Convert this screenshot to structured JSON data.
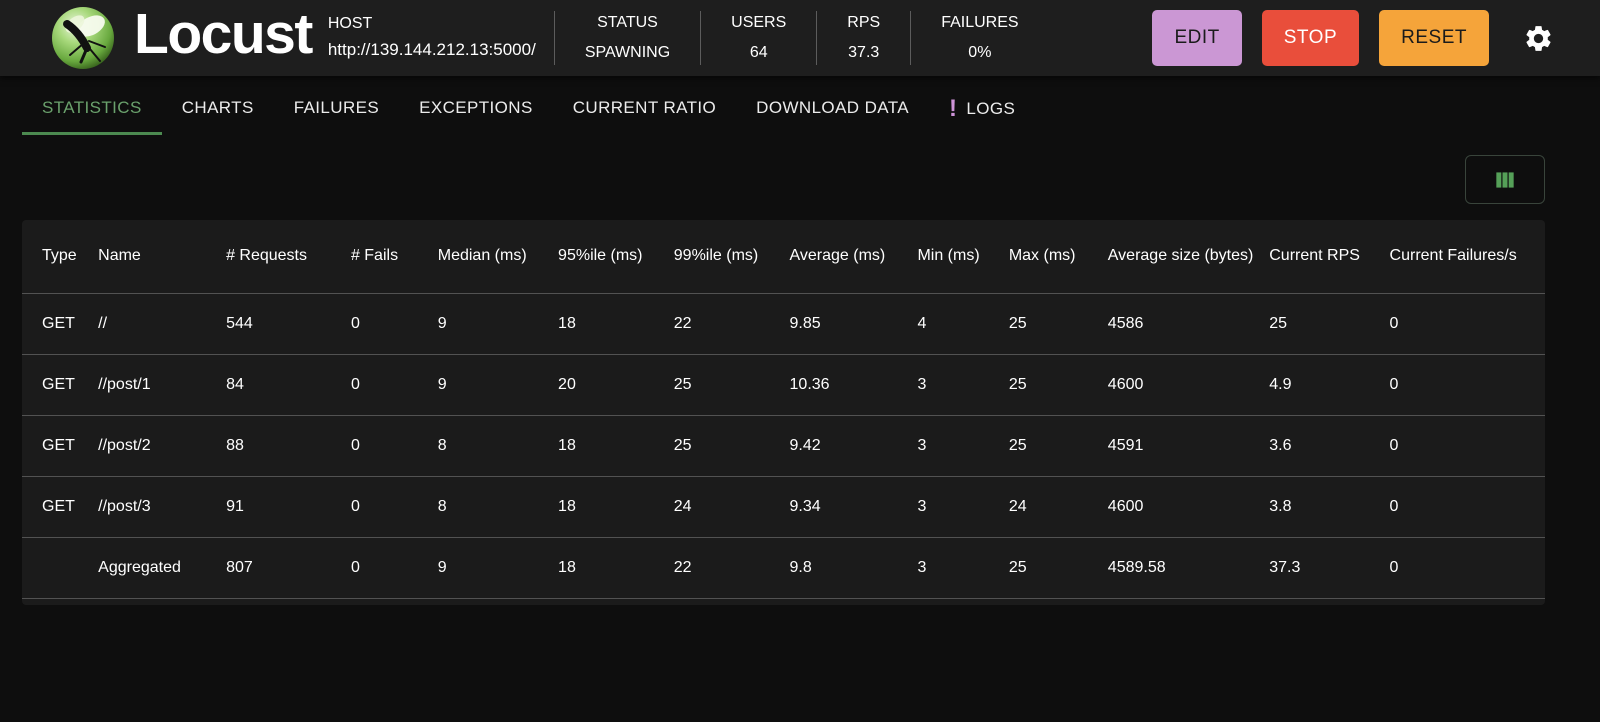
{
  "header": {
    "app_name": "Locust",
    "host_label": "HOST",
    "host_url": "http://139.144.212.13:5000/",
    "stats": [
      {
        "id": "status",
        "label": "STATUS",
        "value": "SPAWNING"
      },
      {
        "id": "users",
        "label": "USERS",
        "value": "64"
      },
      {
        "id": "rps",
        "label": "RPS",
        "value": "37.3"
      },
      {
        "id": "failures",
        "label": "FAILURES",
        "value": "0%"
      }
    ],
    "buttons": [
      {
        "id": "edit",
        "label": "EDIT",
        "bg": "#cb97d4",
        "fg": "#1b1b1b"
      },
      {
        "id": "stop",
        "label": "STOP",
        "bg": "#e94e3b",
        "fg": "#ffffff"
      },
      {
        "id": "reset",
        "label": "RESET",
        "bg": "#f5a43a",
        "fg": "#1b1b1b"
      }
    ]
  },
  "tabs": [
    {
      "id": "statistics",
      "label": "STATISTICS",
      "active": true
    },
    {
      "id": "charts",
      "label": "CHARTS"
    },
    {
      "id": "failures",
      "label": "FAILURES"
    },
    {
      "id": "exceptions",
      "label": "EXCEPTIONS"
    },
    {
      "id": "current-ratio",
      "label": "CURRENT RATIO"
    },
    {
      "id": "download-data",
      "label": "DOWNLOAD DATA"
    },
    {
      "id": "logs",
      "label": "LOGS",
      "badge": "!"
    }
  ],
  "icons": {
    "settings": "gear-icon",
    "column_selector": "view-columns-icon",
    "logs_alert": "exclamation-icon",
    "logo": "locust-logo"
  },
  "colors": {
    "accent_green": "#6aa16c",
    "tab_underline_green": "#4c8a50",
    "column_icon_green": "#55a058",
    "edit_purple": "#cb97d4",
    "stop_red": "#e94e3b",
    "reset_orange": "#f5a43a",
    "logs_badge_purple": "#ce93d8"
  },
  "table": {
    "columns": [
      "Type",
      "Name",
      "# Requests",
      "# Fails",
      "Median (ms)",
      "95%ile (ms)",
      "99%ile (ms)",
      "Average (ms)",
      "Min (ms)",
      "Max (ms)",
      "Average size (bytes)",
      "Current RPS",
      "Current Failures/s"
    ],
    "rows": [
      {
        "cells": [
          "GET",
          "//",
          "544",
          "0",
          "9",
          "18",
          "22",
          "9.85",
          "4",
          "25",
          "4586",
          "25",
          "0"
        ]
      },
      {
        "cells": [
          "GET",
          "//post/1",
          "84",
          "0",
          "9",
          "20",
          "25",
          "10.36",
          "3",
          "25",
          "4600",
          "4.9",
          "0"
        ]
      },
      {
        "cells": [
          "GET",
          "//post/2",
          "88",
          "0",
          "8",
          "18",
          "25",
          "9.42",
          "3",
          "25",
          "4591",
          "3.6",
          "0"
        ]
      },
      {
        "cells": [
          "GET",
          "//post/3",
          "91",
          "0",
          "8",
          "18",
          "24",
          "9.34",
          "3",
          "24",
          "4600",
          "3.8",
          "0"
        ]
      },
      {
        "cells": [
          "",
          "Aggregated",
          "807",
          "0",
          "9",
          "18",
          "22",
          "9.8",
          "3",
          "25",
          "4589.58",
          "37.3",
          "0"
        ],
        "aggregated": true
      }
    ]
  }
}
